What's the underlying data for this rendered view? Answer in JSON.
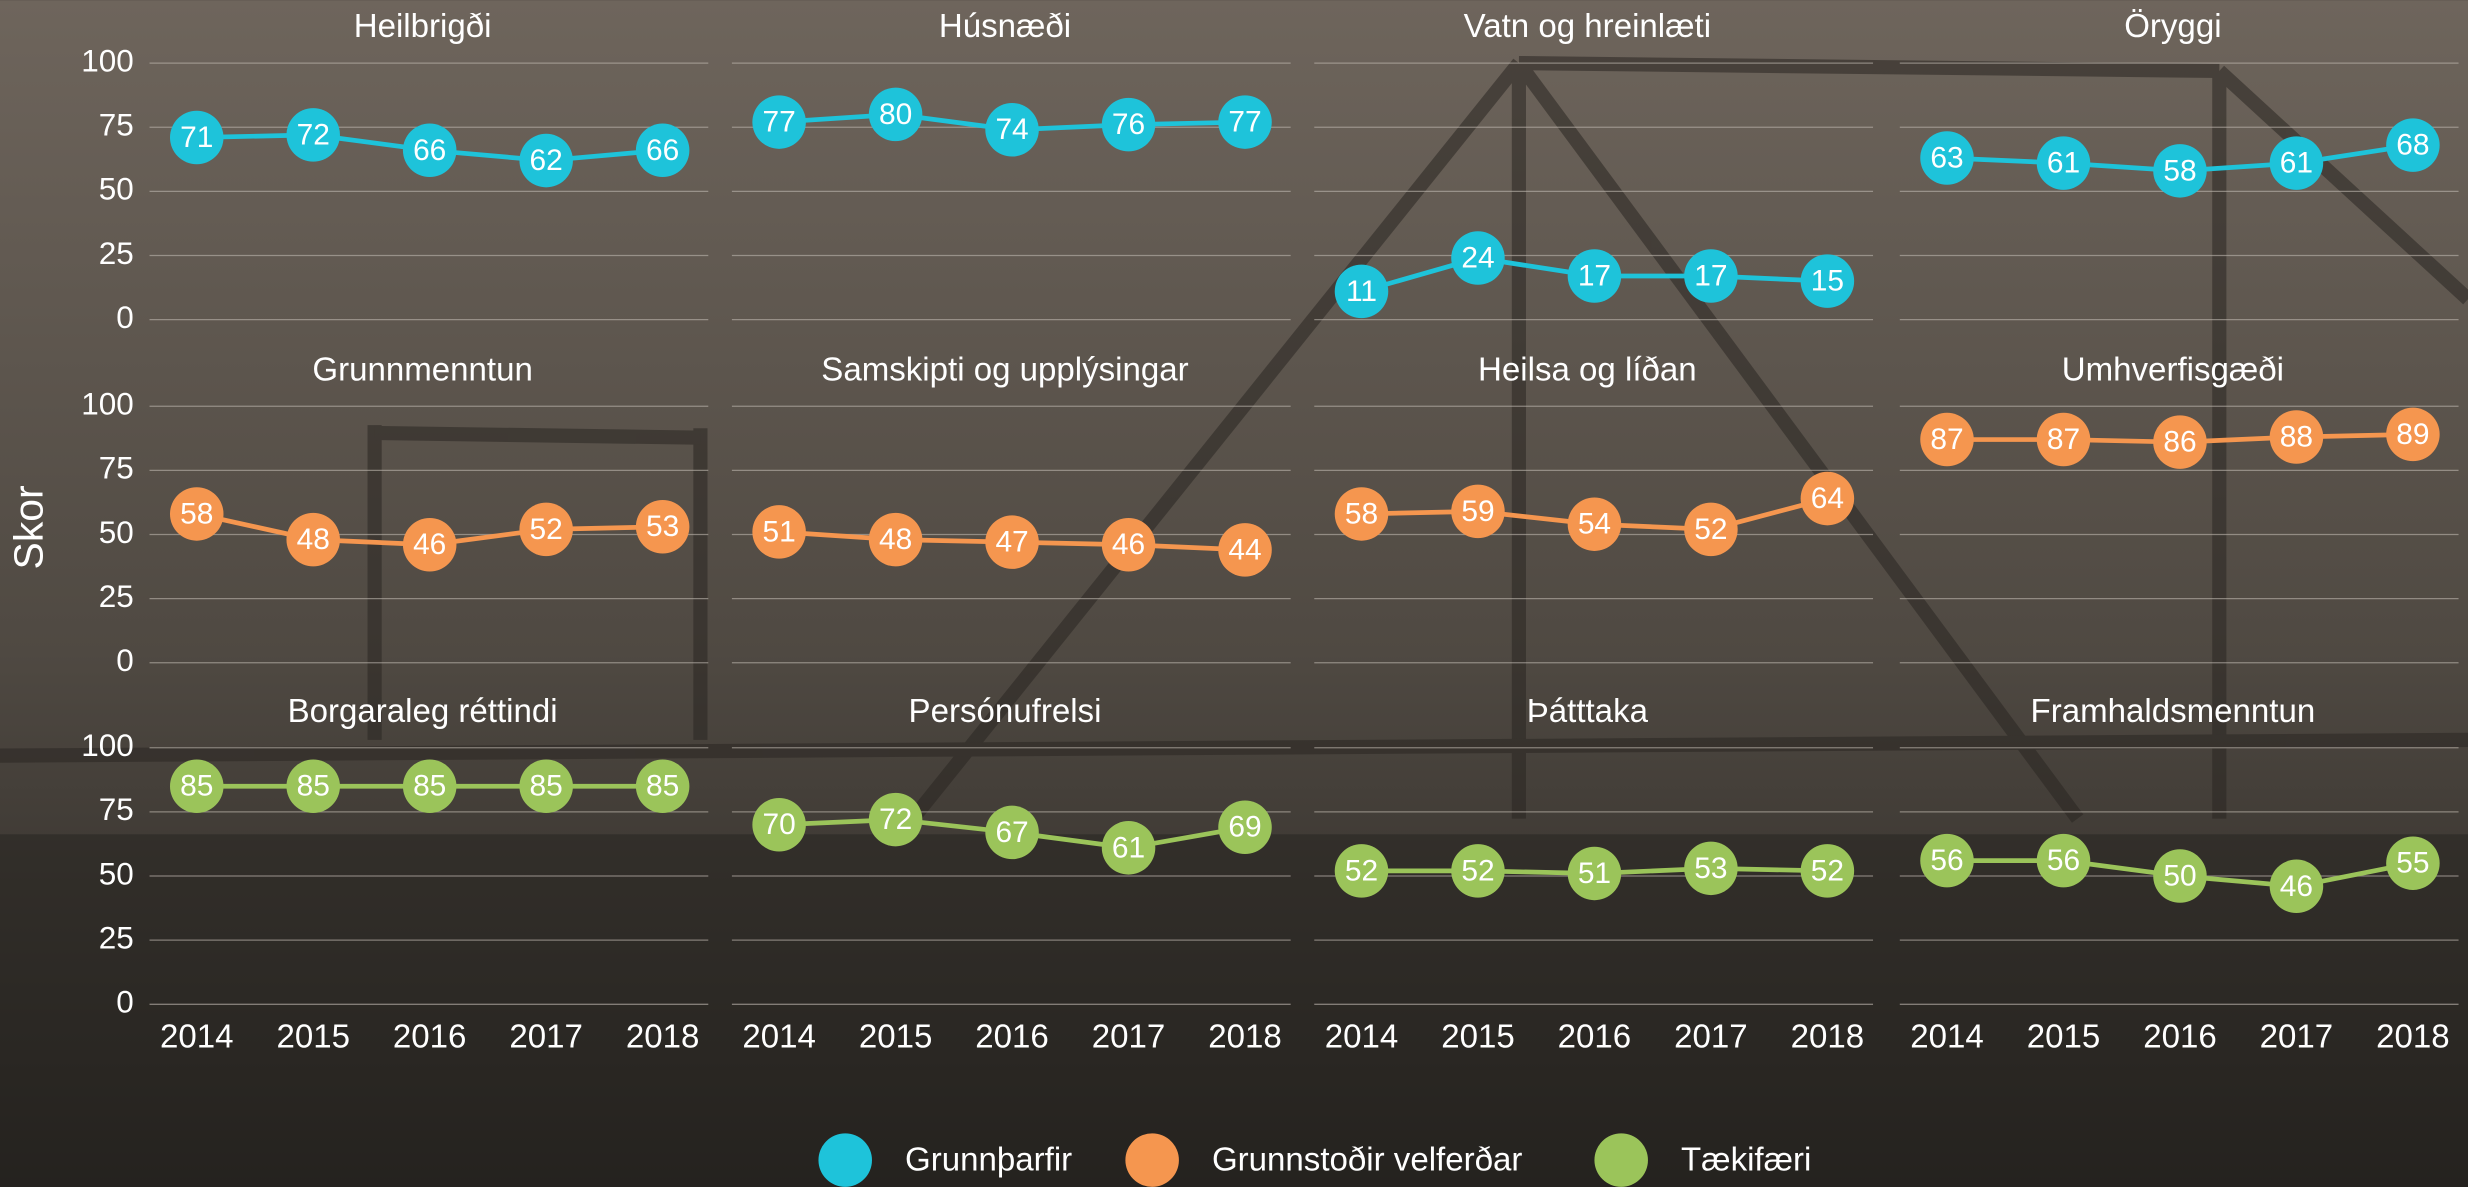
{
  "chart_data": {
    "type": "line",
    "ylabel": "Skor",
    "categories": [
      "2014",
      "2015",
      "2016",
      "2017",
      "2018"
    ],
    "ylim": [
      0,
      100
    ],
    "yticks": [
      0,
      25,
      50,
      75,
      100
    ],
    "grid": true,
    "series": [
      {
        "name": "Grunnþarfir",
        "color": "#1ec3da",
        "panels": [
          {
            "title": "Heilbrigði",
            "values": [
              71,
              72,
              66,
              62,
              66
            ]
          },
          {
            "title": "Húsnæði",
            "values": [
              77,
              80,
              74,
              76,
              77
            ]
          },
          {
            "title": "Vatn og hreinlæti",
            "values": [
              11,
              24,
              17,
              17,
              15
            ]
          },
          {
            "title": "Öryggi",
            "values": [
              63,
              61,
              58,
              61,
              68
            ]
          }
        ]
      },
      {
        "name": "Grunnstoðir velferðar",
        "color": "#f5964f",
        "panels": [
          {
            "title": "Grunnmenntun",
            "values": [
              58,
              48,
              46,
              52,
              53
            ]
          },
          {
            "title": "Samskipti og upplýsingar",
            "values": [
              51,
              48,
              47,
              46,
              44
            ]
          },
          {
            "title": "Heilsa og líðan",
            "values": [
              58,
              59,
              54,
              52,
              64
            ]
          },
          {
            "title": "Umhverfisgæði",
            "values": [
              87,
              87,
              86,
              88,
              89
            ]
          }
        ]
      },
      {
        "name": "Tækifæri",
        "color": "#9bc45a",
        "panels": [
          {
            "title": "Borgaraleg réttindi",
            "values": [
              85,
              85,
              85,
              85,
              85
            ]
          },
          {
            "title": "Persónufrelsi",
            "values": [
              70,
              72,
              67,
              61,
              69
            ]
          },
          {
            "title": "Þátttaka",
            "values": [
              52,
              52,
              51,
              53,
              52
            ]
          },
          {
            "title": "Framhaldsmenntun",
            "values": [
              56,
              56,
              50,
              46,
              55
            ]
          }
        ]
      }
    ]
  }
}
